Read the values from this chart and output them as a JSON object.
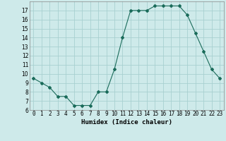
{
  "x": [
    0,
    1,
    2,
    3,
    4,
    5,
    6,
    7,
    8,
    9,
    10,
    11,
    12,
    13,
    14,
    15,
    16,
    17,
    18,
    19,
    20,
    21,
    22,
    23
  ],
  "y": [
    9.5,
    9.0,
    8.5,
    7.5,
    7.5,
    6.5,
    6.5,
    6.5,
    8.0,
    8.0,
    10.5,
    14.0,
    17.0,
    17.0,
    17.0,
    17.5,
    17.5,
    17.5,
    17.5,
    16.5,
    14.5,
    12.5,
    10.5,
    9.5
  ],
  "line_color": "#1a6b5a",
  "marker": "D",
  "marker_size": 2,
  "bg_color": "#ceeaea",
  "grid_color": "#a8d0d0",
  "xlabel": "Humidex (Indice chaleur)",
  "ylim": [
    6,
    18
  ],
  "xlim": [
    -0.5,
    23.5
  ],
  "yticks": [
    6,
    7,
    8,
    9,
    10,
    11,
    12,
    13,
    14,
    15,
    16,
    17
  ],
  "xtick_labels": [
    "0",
    "1",
    "2",
    "3",
    "4",
    "5",
    "6",
    "7",
    "8",
    "9",
    "10",
    "11",
    "12",
    "13",
    "14",
    "15",
    "16",
    "17",
    "18",
    "19",
    "20",
    "21",
    "22",
    "23"
  ],
  "label_fontsize": 6.5,
  "tick_fontsize": 5.5
}
